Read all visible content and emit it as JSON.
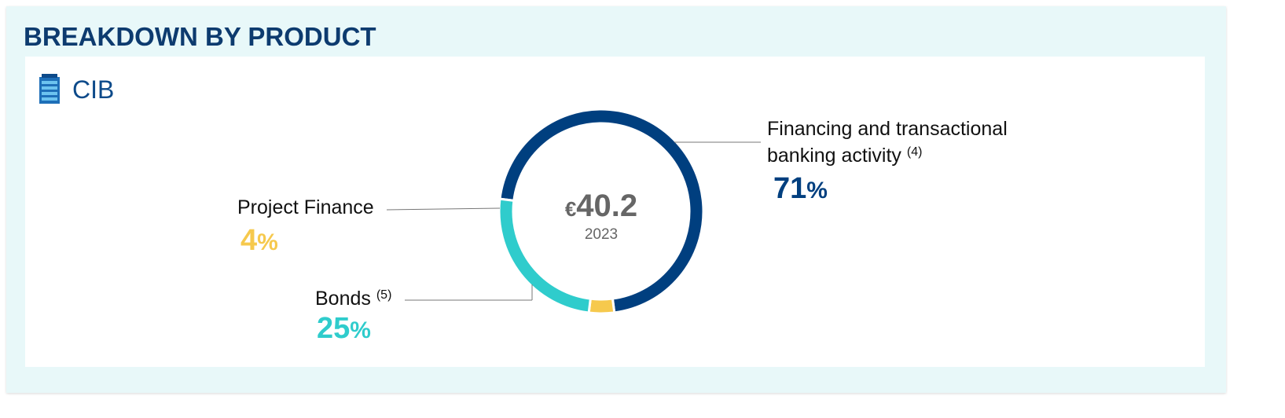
{
  "header": {
    "title": "BREAKDOWN BY PRODUCT",
    "section": "CIB"
  },
  "chart_data": {
    "type": "donut",
    "categories": [
      "Financing and transactional banking activity",
      "Project Finance",
      "Bonds"
    ],
    "notes": [
      "(4)",
      null,
      "(5)"
    ],
    "values": [
      71,
      4,
      25
    ],
    "unit": "%",
    "colors": [
      "#003f7f",
      "#f6c94d",
      "#2fcccc"
    ],
    "center": {
      "prefix": "€",
      "value": 40.2,
      "caption": "2023"
    }
  }
}
